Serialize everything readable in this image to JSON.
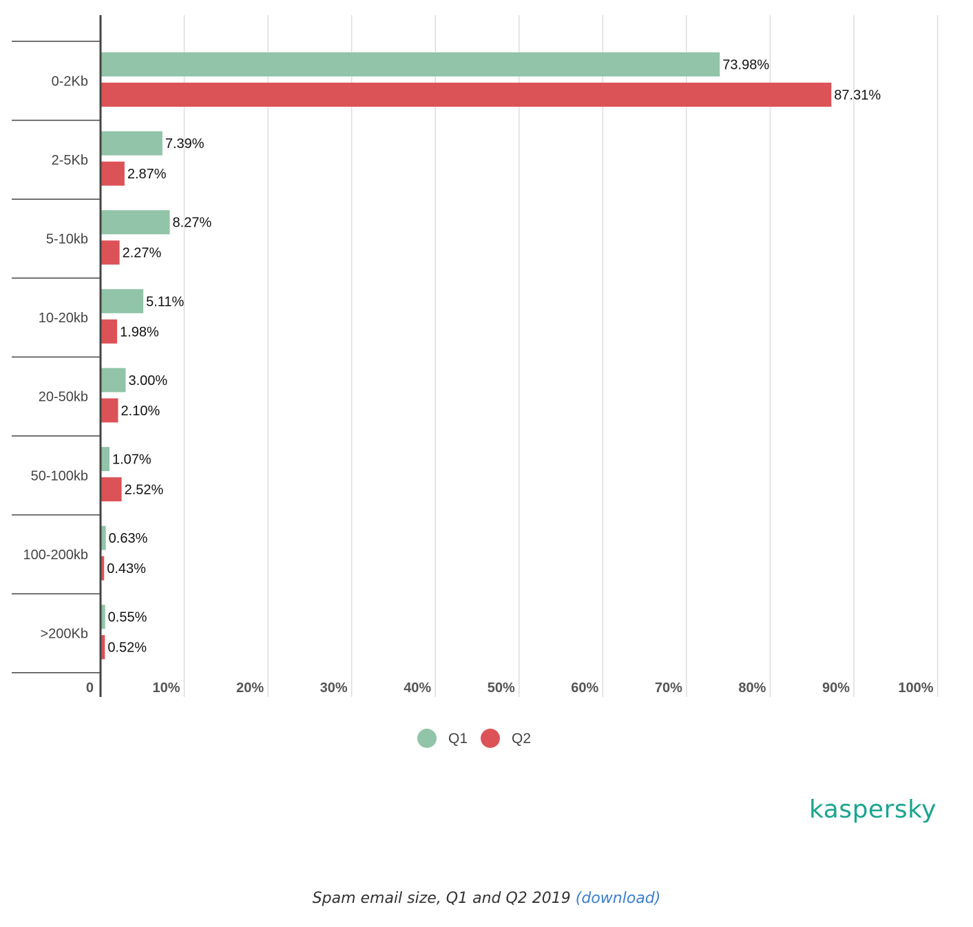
{
  "chart_data": {
    "type": "bar",
    "orientation": "horizontal",
    "title": "Spam email size, Q1 and Q2 2019",
    "categories": [
      "0-2Kb",
      "2-5Kb",
      "5-10kb",
      "10-20kb",
      "20-50kb",
      "50-100kb",
      "100-200kb",
      ">200Kb"
    ],
    "series": [
      {
        "name": "Q1",
        "color": "#91c4a8",
        "values": [
          73.98,
          7.39,
          8.27,
          5.11,
          3.0,
          1.07,
          0.63,
          0.55
        ],
        "labels": [
          "73.98%",
          "7.39%",
          "8.27%",
          "5.11%",
          "3.00%",
          "1.07%",
          "0.63%",
          "0.55%"
        ]
      },
      {
        "name": "Q2",
        "color": "#dc5357",
        "values": [
          87.31,
          2.87,
          2.27,
          1.98,
          2.1,
          2.52,
          0.43,
          0.52
        ],
        "labels": [
          "87.31%",
          "2.87%",
          "2.27%",
          "1.98%",
          "2.10%",
          "2.52%",
          "0.43%",
          "0.52%"
        ]
      }
    ],
    "xlim": [
      0,
      100
    ],
    "ticks": [
      "0",
      "10%",
      "20%",
      "30%",
      "40%",
      "50%",
      "60%",
      "70%",
      "80%",
      "90%",
      "100%"
    ],
    "grid": true,
    "legend": "bottom-center"
  },
  "brand": {
    "logo_text": "kaspersky",
    "logo_color": "#1aa58f"
  },
  "caption": {
    "text": "Spam email size, Q1 and Q2 2019",
    "link_text": "(download)"
  }
}
